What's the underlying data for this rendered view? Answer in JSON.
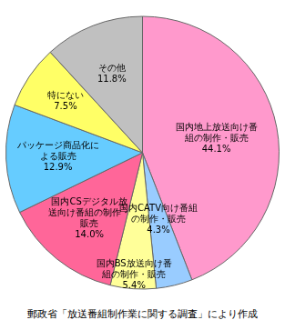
{
  "chart_data": {
    "type": "pie",
    "categories": [
      "国内地上放送向け番組の制作・販売",
      "国内CATV向け番組の制作・販売",
      "国内BS放送向け番組の制作・販売",
      "国内CSデジタル放送向け番組の制作・販売",
      "パッケージ商品化による販売",
      "特にない",
      "その他"
    ],
    "values": [
      44.1,
      4.3,
      5.4,
      14.0,
      12.9,
      7.5,
      11.8
    ],
    "value_labels": [
      "44.1%",
      "4.3%",
      "5.4%",
      "14.0%",
      "12.9%",
      "7.5%",
      "11.8%"
    ],
    "colors": [
      "#ff99cc",
      "#99ccff",
      "#ffff99",
      "#ff6699",
      "#66ccff",
      "#ffff66",
      "#c0c0c0"
    ],
    "data_labels": true,
    "note": "郵政省「放送番組制作業に関する調査」により作成"
  }
}
